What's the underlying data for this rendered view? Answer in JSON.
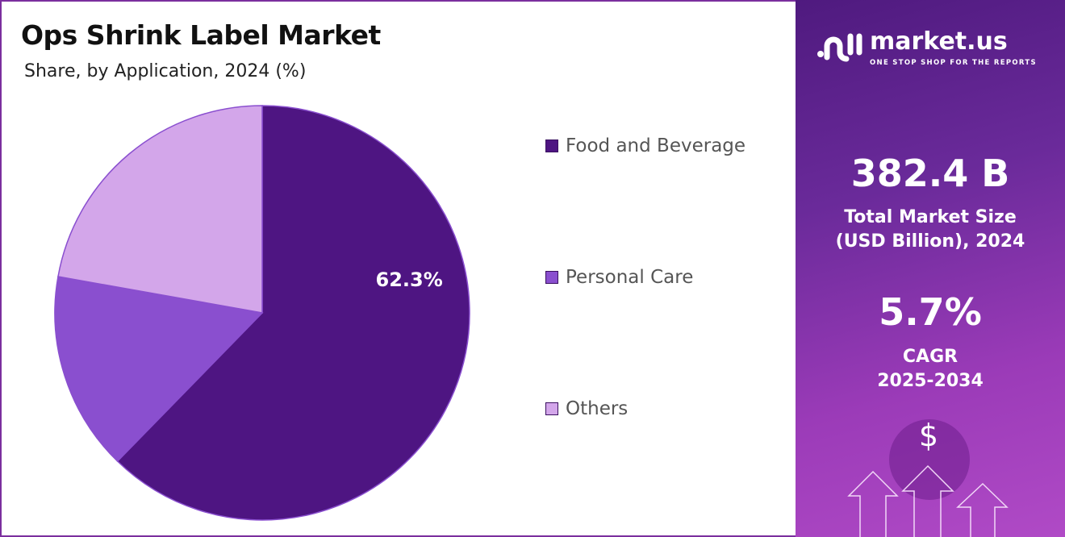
{
  "title": "Ops Shrink Label Market",
  "subtitle": "Share, by Application, 2024 (%)",
  "chart_data": {
    "type": "pie",
    "title": "Ops Shrink Label Market",
    "subtitle": "Share, by Application, 2024 (%)",
    "categories": [
      "Food and Beverage",
      "Personal Care",
      "Others"
    ],
    "values": [
      62.3,
      15.5,
      22.2
    ],
    "data_labels": [
      "62.3%",
      "",
      ""
    ],
    "colors": [
      "#4e1582",
      "#8a4fcf",
      "#d3a6ea"
    ],
    "legend_position": "right"
  },
  "panel": {
    "logo_name": "market.us",
    "logo_tagline": "ONE STOP SHOP FOR THE REPORTS",
    "market_size": "382.4 B",
    "market_size_label_1": "Total Market Size",
    "market_size_label_2": "(USD Billion), 2024",
    "cagr": "5.7%",
    "cagr_label": "CAGR",
    "cagr_period": "2025-2034",
    "dollar_icon": "$"
  }
}
